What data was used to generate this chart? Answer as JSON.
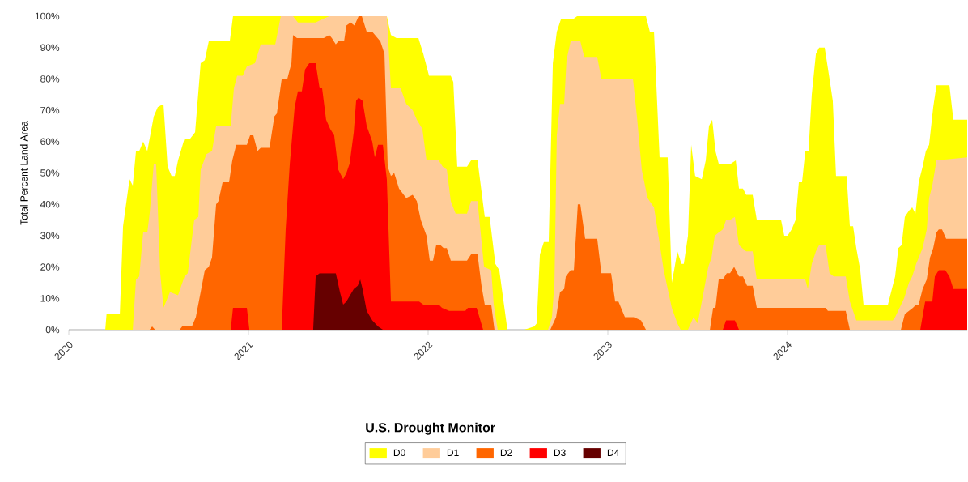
{
  "chart_data": {
    "type": "area",
    "ylabel": "Total Percent Land Area",
    "legend_title": "U.S. Drought Monitor",
    "legend": "bottom",
    "xlim": [
      2020,
      2025
    ],
    "xticks": [
      2020,
      2021,
      2022,
      2023,
      2024
    ],
    "ylim": [
      0,
      100
    ],
    "yticks": [
      {
        "value": 0,
        "label": "0%"
      },
      {
        "value": 10,
        "label": "10%"
      },
      {
        "value": 20,
        "label": "20%"
      },
      {
        "value": 30,
        "label": "30%"
      },
      {
        "value": 40,
        "label": "40%"
      },
      {
        "value": 50,
        "label": "50%"
      },
      {
        "value": 60,
        "label": "60%"
      },
      {
        "value": 70,
        "label": "70%"
      },
      {
        "value": 80,
        "label": "80%"
      },
      {
        "value": 90,
        "label": "90%"
      },
      {
        "value": 100,
        "label": "100%"
      }
    ],
    "series": [
      {
        "name": "D0",
        "color": "#ffff00",
        "x": [
          2020.203,
          2020.21,
          2020.284,
          2020.302,
          2020.338,
          2020.356,
          2020.374,
          2020.392,
          2020.414,
          2020.437,
          2020.473,
          2020.495,
          2020.527,
          2020.55,
          2020.572,
          2020.59,
          2020.608,
          2020.644,
          2020.676,
          2020.703,
          2020.734,
          2020.757,
          2020.779,
          2020.896,
          2020.914,
          2021.77,
          2021.793,
          2021.824,
          2021.946,
          2021.973,
          2022.005,
          2022.036,
          2022.126,
          2022.14,
          2022.162,
          2022.216,
          2022.239,
          2022.275,
          2022.315,
          2022.342,
          2022.374,
          2022.396,
          2022.441,
          2022.536,
          2022.59,
          2022.604,
          2022.622,
          2022.644,
          2022.671,
          2022.694,
          2022.716,
          2022.739,
          2022.806,
          2022.829,
          2023.212,
          2023.234,
          2023.257,
          2023.288,
          2023.333,
          2023.356,
          2023.369,
          2023.387,
          2023.41,
          2023.423,
          2023.446,
          2023.464,
          2023.486,
          2023.523,
          2023.545,
          2023.563,
          2023.581,
          2023.599,
          2023.617,
          2023.685,
          2023.712,
          2023.73,
          2023.752,
          2023.77,
          2023.806,
          2023.829,
          2023.851,
          2023.964,
          2023.982,
          2024.0,
          2024.023,
          2024.045,
          2024.063,
          2024.081,
          2024.099,
          2024.117,
          2024.135,
          2024.158,
          2024.176,
          2024.207,
          2024.234,
          2024.252,
          2024.27,
          2024.329,
          2024.347,
          2024.365,
          2024.383,
          2024.405,
          2024.423,
          2024.559,
          2024.581,
          2024.599,
          2024.617,
          2024.635,
          2024.653,
          2024.676,
          2024.694,
          2024.712,
          2024.73,
          2024.752,
          2024.77,
          2024.788,
          2024.811,
          2024.829,
          2024.901,
          2024.923,
          2025.0
        ],
        "values": [
          0,
          5,
          5,
          33,
          48,
          46,
          57,
          57,
          60,
          57,
          68,
          71,
          72,
          52,
          49,
          49,
          54,
          61,
          61,
          63,
          85,
          86,
          92,
          92,
          100,
          100,
          94,
          93,
          93,
          88,
          81,
          81,
          81,
          79,
          52,
          52,
          54,
          54,
          36,
          36,
          21,
          19,
          0,
          0,
          1,
          2,
          24,
          28,
          28,
          85,
          95,
          99,
          99,
          100,
          100,
          95,
          95,
          55,
          55,
          15,
          19,
          25,
          21,
          21,
          30,
          59,
          49,
          48,
          54,
          65,
          67,
          57,
          53,
          53,
          54,
          45,
          45,
          43,
          43,
          35,
          35,
          35,
          30,
          30,
          32,
          35,
          47,
          47,
          57,
          57,
          75,
          88,
          90,
          90,
          80,
          73,
          49,
          49,
          33,
          33,
          26,
          19,
          8,
          8,
          13,
          17,
          26,
          27,
          36,
          38,
          39,
          37,
          47,
          52,
          57,
          59,
          71,
          78,
          78,
          67,
          67
        ]
      },
      {
        "name": "D1",
        "color": "#ffcc99",
        "x": [
          2020.356,
          2020.374,
          2020.392,
          2020.414,
          2020.437,
          2020.45,
          2020.473,
          2020.486,
          2020.509,
          2020.527,
          2020.563,
          2020.608,
          2020.644,
          2020.662,
          2020.698,
          2020.721,
          2020.734,
          2020.766,
          2020.797,
          2020.82,
          2020.901,
          2020.919,
          2020.937,
          2020.968,
          2020.991,
          2021.036,
          2021.068,
          2021.149,
          2021.18,
          2021.248,
          2021.275,
          2021.374,
          2021.41,
          2021.45,
          2021.77,
          2021.793,
          2021.847,
          2021.878,
          2021.914,
          2021.937,
          2021.968,
          2021.991,
          2022.059,
          2022.081,
          2022.104,
          2022.126,
          2022.153,
          2022.216,
          2022.239,
          2022.275,
          2022.311,
          2022.351,
          2022.365,
          2022.387,
          2022.667,
          2022.689,
          2022.703,
          2022.716,
          2022.734,
          2022.757,
          2022.77,
          2022.793,
          2022.847,
          2022.869,
          2022.941,
          2022.964,
          2023.14,
          2023.162,
          2023.189,
          2023.221,
          2023.257,
          2023.279,
          2023.311,
          2023.356,
          2023.387,
          2023.405,
          2023.446,
          2023.477,
          2023.5,
          2023.523,
          2023.559,
          2023.577,
          2023.595,
          2023.617,
          2023.64,
          2023.658,
          2023.68,
          2023.707,
          2023.73,
          2023.748,
          2023.77,
          2023.806,
          2023.829,
          2024.099,
          2024.113,
          2024.135,
          2024.158,
          2024.176,
          2024.212,
          2024.234,
          2024.257,
          2024.324,
          2024.347,
          2024.383,
          2024.586,
          2024.599,
          2024.649,
          2024.676,
          2024.694,
          2024.716,
          2024.752,
          2024.775,
          2024.788,
          2024.806,
          2024.829,
          2025.0
        ],
        "values": [
          0,
          16,
          17,
          31,
          31,
          37,
          53,
          53,
          18,
          7,
          12,
          11,
          17,
          18,
          35,
          36,
          51,
          56,
          57,
          65,
          65,
          77,
          81,
          81,
          84,
          85,
          91,
          91,
          100,
          100,
          98,
          98,
          99,
          100,
          100,
          77,
          77,
          72,
          70,
          67,
          64,
          54,
          54,
          52,
          51,
          41,
          37,
          37,
          41,
          41,
          20,
          19,
          8,
          0,
          0,
          4,
          15,
          62,
          72,
          72,
          86,
          92,
          92,
          87,
          87,
          80,
          80,
          68,
          51,
          42,
          39,
          31,
          19,
          7,
          2,
          0,
          0,
          4,
          2,
          9,
          20,
          23,
          30,
          31,
          32,
          35,
          35,
          36,
          27,
          26,
          25,
          25,
          16,
          16,
          13,
          21,
          25,
          27,
          27,
          18,
          17,
          17,
          9,
          3,
          3,
          4,
          10,
          15,
          17,
          21,
          26,
          32,
          42,
          46,
          54,
          55
        ]
      },
      {
        "name": "D2",
        "color": "#ff6600",
        "x": [
          2020.45,
          2020.464,
          2020.48,
          2020.617,
          2020.631,
          2020.685,
          2020.707,
          2020.734,
          2020.757,
          2020.779,
          2020.797,
          2020.82,
          2020.833,
          2020.856,
          2020.892,
          2020.91,
          2020.932,
          2020.991,
          2021.009,
          2021.027,
          2021.05,
          2021.068,
          2021.117,
          2021.144,
          2021.158,
          2021.185,
          2021.216,
          2021.239,
          2021.248,
          2021.27,
          2021.419,
          2021.45,
          2021.464,
          2021.486,
          2021.5,
          2021.532,
          2021.545,
          2021.568,
          2021.59,
          2021.613,
          2021.631,
          2021.658,
          2021.689,
          2021.734,
          2021.757,
          2021.775,
          2021.793,
          2021.811,
          2021.838,
          2021.878,
          2021.914,
          2021.937,
          2021.959,
          2021.991,
          2022.009,
          2022.027,
          2022.045,
          2022.068,
          2022.086,
          2022.104,
          2022.126,
          2022.216,
          2022.239,
          2022.275,
          2022.297,
          2022.315,
          2022.351,
          2022.369,
          2022.68,
          2022.712,
          2022.734,
          2022.757,
          2022.766,
          2022.793,
          2022.811,
          2022.833,
          2022.847,
          2022.874,
          2022.941,
          2022.964,
          2023.018,
          2023.041,
          2023.059,
          2023.095,
          2023.144,
          2023.185,
          2023.212,
          2023.568,
          2023.586,
          2023.599,
          2023.617,
          2023.64,
          2023.662,
          2023.68,
          2023.703,
          2023.73,
          2023.752,
          2023.775,
          2023.806,
          2023.829,
          2024.212,
          2024.225,
          2024.324,
          2024.347,
          2024.631,
          2024.653,
          2024.676,
          2024.698,
          2024.716,
          2024.73,
          2024.752,
          2024.775,
          2024.793,
          2024.811,
          2024.829,
          2024.842,
          2024.86,
          2024.883,
          2025.0
        ],
        "values": [
          0,
          1,
          0,
          0,
          1,
          1,
          4,
          12,
          19,
          20,
          23,
          40,
          41,
          47,
          47,
          54,
          59,
          59,
          62,
          62,
          57,
          58,
          58,
          68,
          69,
          80,
          80,
          85,
          94,
          93,
          93,
          94,
          93,
          91,
          92,
          92,
          97,
          98,
          97,
          100,
          100,
          95,
          95,
          92,
          88,
          52,
          49,
          50,
          45,
          42,
          43,
          41,
          35,
          30,
          22,
          22,
          27,
          27,
          26,
          26,
          22,
          22,
          24,
          24,
          14,
          8,
          8,
          0,
          0,
          4,
          12,
          13,
          17,
          19,
          19,
          40,
          40,
          29,
          29,
          18,
          18,
          9,
          9,
          4,
          4,
          3,
          0,
          0,
          7,
          7,
          16,
          16,
          18,
          18,
          20,
          17,
          17,
          14,
          14,
          7,
          7,
          6,
          6,
          0,
          0,
          5,
          6,
          7,
          8,
          8,
          13,
          16,
          23,
          26,
          31,
          32,
          32,
          29,
          29
        ]
      },
      {
        "name": "D3",
        "color": "#ff0000",
        "x": [
          2020.901,
          2020.914,
          2020.991,
          2021.005,
          2021.185,
          2021.207,
          2021.23,
          2021.257,
          2021.275,
          2021.297,
          2021.315,
          2021.338,
          2021.374,
          2021.396,
          2021.41,
          2021.432,
          2021.455,
          2021.477,
          2021.5,
          2021.527,
          2021.545,
          2021.563,
          2021.586,
          2021.599,
          2021.613,
          2021.635,
          2021.658,
          2021.689,
          2021.703,
          2021.721,
          2021.748,
          2021.77,
          2021.793,
          2021.95,
          2021.973,
          2022.059,
          2022.077,
          2022.117,
          2022.207,
          2022.221,
          2022.27,
          2022.306,
          2023.64,
          2023.658,
          2023.707,
          2023.73,
          2024.739,
          2024.766,
          2024.806,
          2024.82,
          2024.842,
          2024.878,
          2024.901,
          2024.923,
          2025.0
        ],
        "values": [
          0,
          7,
          7,
          0,
          0,
          32,
          53,
          71,
          76,
          76,
          83,
          85,
          85,
          77,
          77,
          67,
          64,
          62,
          51,
          48,
          50,
          53,
          63,
          73,
          74,
          73,
          65,
          60,
          55,
          59,
          59,
          48,
          9,
          9,
          8,
          8,
          7,
          6,
          6,
          7,
          7,
          0,
          0,
          3,
          3,
          0,
          0,
          9,
          9,
          17,
          19,
          19,
          17,
          13,
          13
        ]
      },
      {
        "name": "D4",
        "color": "#660000",
        "x": [
          2021.36,
          2021.374,
          2021.396,
          2021.486,
          2021.509,
          2021.527,
          2021.545,
          2021.586,
          2021.608,
          2021.622,
          2021.635,
          2021.658,
          2021.689,
          2021.721,
          2021.748
        ],
        "values": [
          0,
          17,
          18,
          18,
          12,
          8,
          9,
          13,
          14,
          16,
          13,
          6,
          3,
          1,
          0
        ]
      }
    ]
  }
}
